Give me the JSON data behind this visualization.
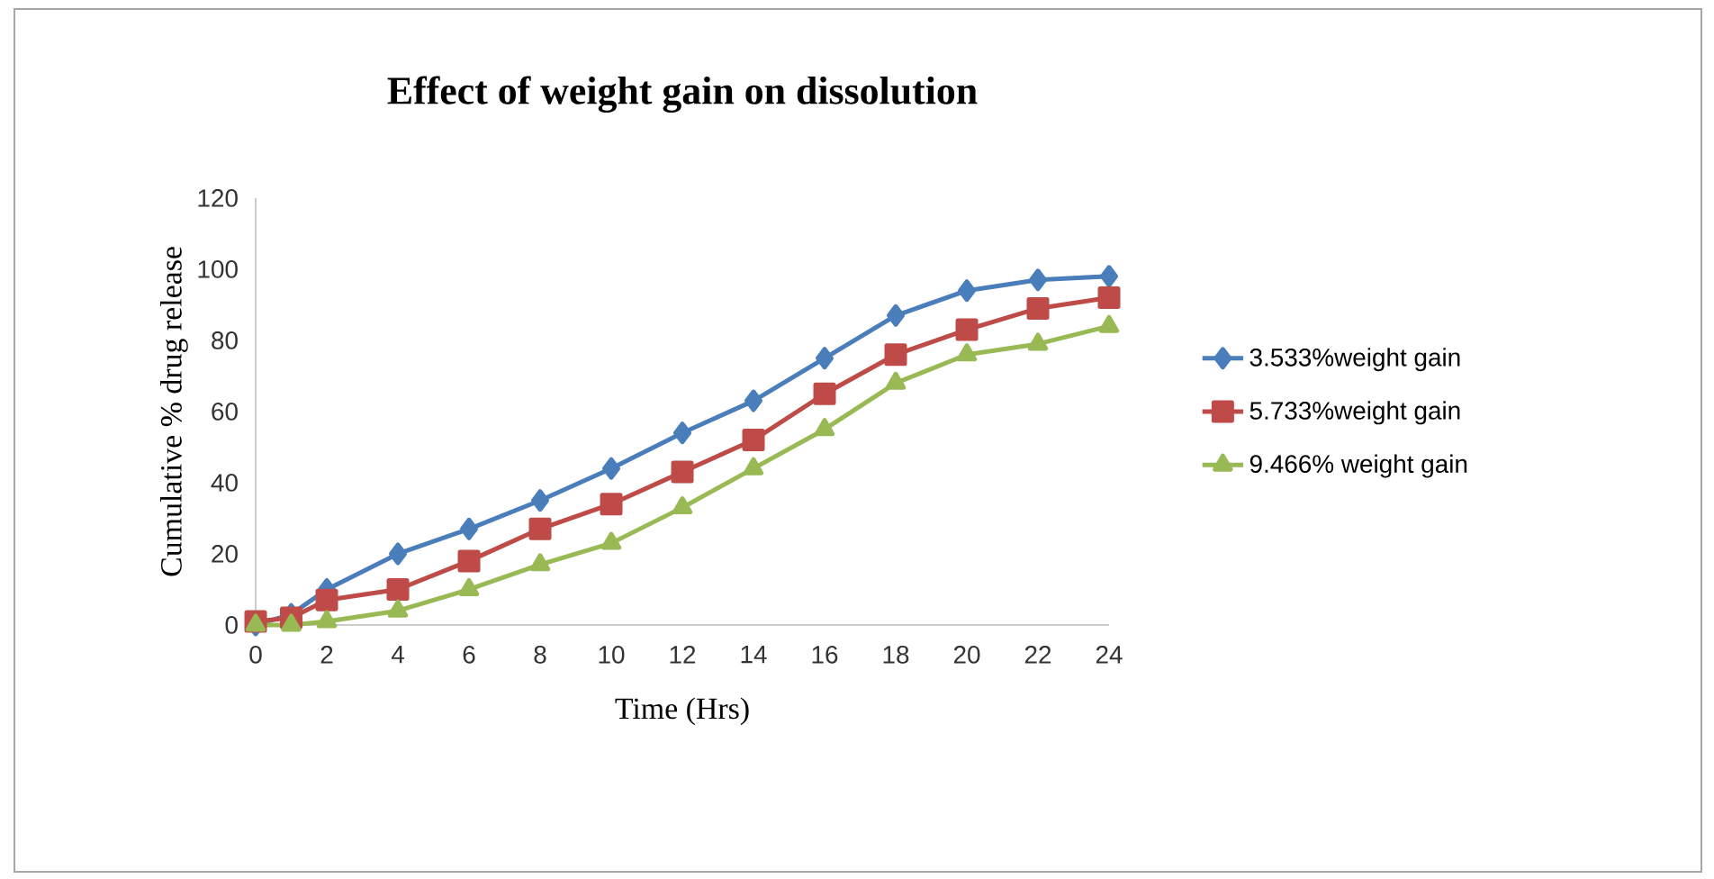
{
  "chart_data": {
    "type": "line",
    "title": "Effect of weight gain  on dissolution",
    "xlabel": "Time (Hrs)",
    "ylabel": "Cumulative % drug release",
    "x": [
      0,
      1,
      2,
      4,
      6,
      8,
      10,
      12,
      14,
      16,
      18,
      20,
      22,
      24
    ],
    "series": [
      {
        "name": "3.533%weight gain",
        "color": "#4a7ebb",
        "marker": "diamond",
        "values": [
          0,
          3,
          10,
          20,
          27,
          35,
          44,
          54,
          63,
          75,
          87,
          94,
          97,
          98
        ]
      },
      {
        "name": "5.733%weight gain",
        "color": "#be4b48",
        "marker": "square",
        "values": [
          1,
          2,
          7,
          10,
          18,
          27,
          34,
          43,
          52,
          65,
          76,
          83,
          89,
          92
        ]
      },
      {
        "name": "9.466% weight gain",
        "color": "#98b954",
        "marker": "triangle",
        "values": [
          0,
          0,
          1,
          4,
          10,
          17,
          23,
          33,
          44,
          55,
          68,
          76,
          79,
          84
        ]
      }
    ],
    "xlim": [
      0,
      24
    ],
    "xticks": [
      0,
      2,
      4,
      6,
      8,
      10,
      12,
      14,
      16,
      18,
      20,
      22,
      24
    ],
    "ylim": [
      0,
      120
    ],
    "yticks": [
      0,
      20,
      40,
      60,
      80,
      100,
      120
    ],
    "grid": false,
    "legend": "right",
    "line_style": "solid"
  }
}
